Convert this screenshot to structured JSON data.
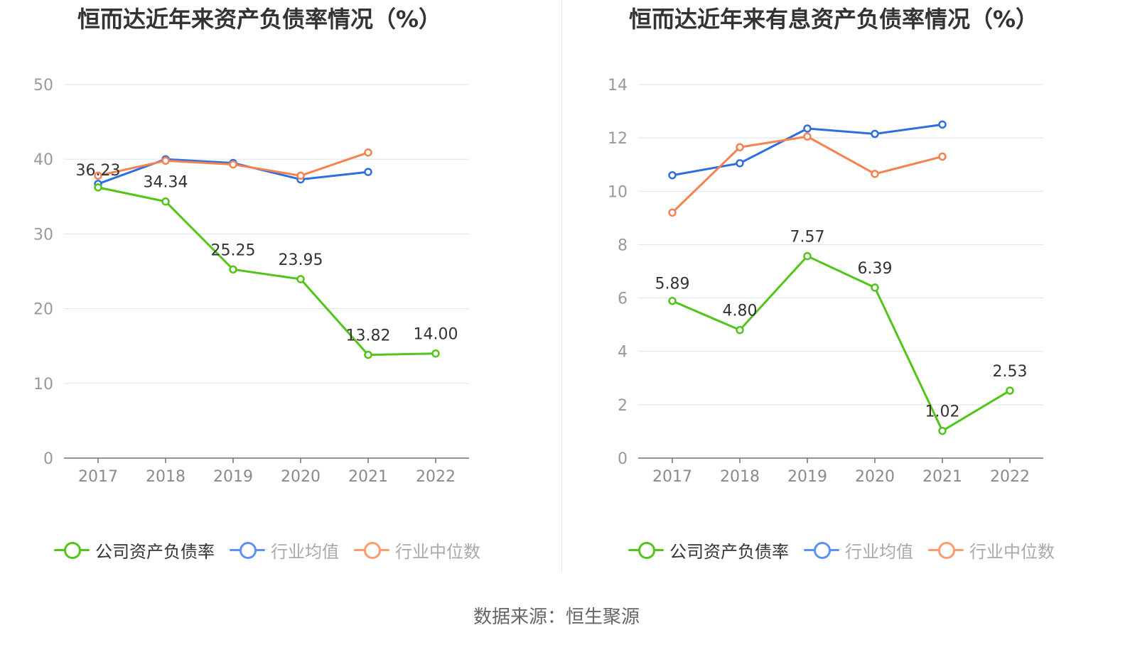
{
  "source_label": "数据来源：恒生聚源",
  "legend_items": [
    {
      "label": "公司资产负债率",
      "color": "#52c41a",
      "muted": false
    },
    {
      "label": "行业均值",
      "color": "#5b8ff9",
      "muted": true
    },
    {
      "label": "行业中位数",
      "color": "#ff9c6e",
      "muted": true
    }
  ],
  "chart_data": [
    {
      "type": "line",
      "title": "恒而达近年来资产负债率情况（%）",
      "categories": [
        "2017",
        "2018",
        "2019",
        "2020",
        "2021",
        "2022"
      ],
      "ylim": [
        0,
        50
      ],
      "yticks": [
        0,
        10,
        20,
        30,
        40,
        50
      ],
      "grid": true,
      "legend_position": "bottom",
      "series": [
        {
          "name": "公司资产负债率",
          "color": "#52c41a",
          "labeled": true,
          "values": [
            36.23,
            34.34,
            25.25,
            23.95,
            13.82,
            14.0
          ],
          "labels": [
            "36.23",
            "34.34",
            "25.25",
            "23.95",
            "13.82",
            "14.00"
          ]
        },
        {
          "name": "行业均值",
          "color": "#2e6fe0",
          "labeled": false,
          "values": [
            36.7,
            40.0,
            39.5,
            37.3,
            38.3,
            null
          ]
        },
        {
          "name": "行业中位数",
          "color": "#f5824f",
          "labeled": false,
          "values": [
            37.8,
            39.8,
            39.3,
            37.8,
            40.9,
            null
          ]
        }
      ]
    },
    {
      "type": "line",
      "title": "恒而达近年来有息资产负债率情况（%）",
      "categories": [
        "2017",
        "2018",
        "2019",
        "2020",
        "2021",
        "2022"
      ],
      "ylim": [
        0,
        14
      ],
      "yticks": [
        0,
        2,
        4,
        6,
        8,
        10,
        12,
        14
      ],
      "grid": true,
      "legend_position": "bottom",
      "series": [
        {
          "name": "公司资产负债率",
          "color": "#52c41a",
          "labeled": true,
          "values": [
            5.89,
            4.8,
            7.57,
            6.39,
            1.02,
            2.53
          ],
          "labels": [
            "5.89",
            "4.80",
            "7.57",
            "6.39",
            "1.02",
            "2.53"
          ]
        },
        {
          "name": "行业均值",
          "color": "#2e6fe0",
          "labeled": false,
          "values": [
            10.6,
            11.05,
            12.35,
            12.15,
            12.5,
            null
          ]
        },
        {
          "name": "行业中位数",
          "color": "#f5824f",
          "labeled": false,
          "values": [
            9.2,
            11.65,
            12.05,
            10.65,
            11.3,
            null
          ]
        }
      ]
    }
  ]
}
